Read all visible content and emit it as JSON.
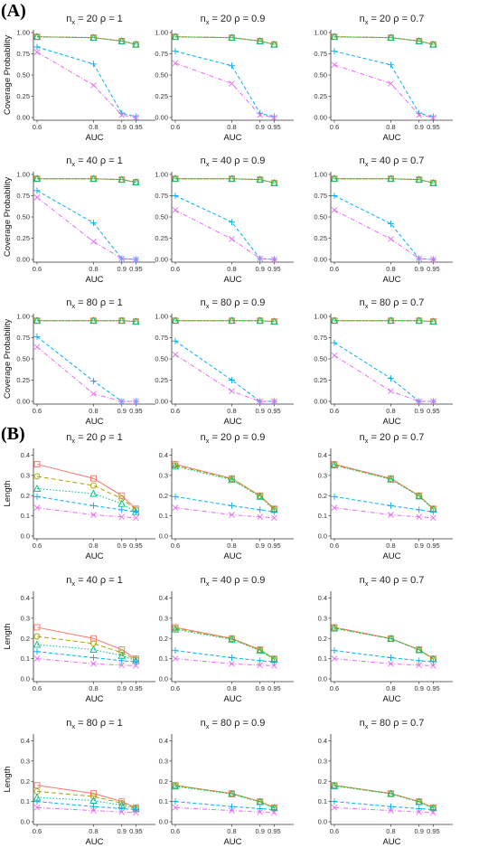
{
  "section_labels": {
    "a": "(A)",
    "b": "(B)"
  },
  "colors": {
    "s1": "#F8766D",
    "s2": "#A3A500",
    "s3": "#00BF7D",
    "s4": "#00B0F6",
    "s5": "#E76BF3"
  },
  "chart_data": [
    {
      "type": "line",
      "section": "(A)",
      "title_parts": [
        "n",
        "x",
        " = 20 ρ = 1"
      ],
      "xlabel": "AUC",
      "ylabel": "Coverage Probability",
      "categories": [
        "0.6",
        "0.8",
        "0.9",
        "0.95"
      ],
      "yticks": [
        "0.00",
        "0.25",
        "0.50",
        "0.75",
        "1.00"
      ],
      "ylim": [
        0,
        1
      ],
      "series": [
        {
          "values": [
            0.95,
            0.94,
            0.9,
            0.86
          ]
        },
        {
          "values": [
            0.95,
            0.94,
            0.9,
            0.86
          ]
        },
        {
          "values": [
            0.95,
            0.94,
            0.9,
            0.86
          ]
        },
        {
          "values": [
            0.83,
            0.63,
            0.05,
            0.01
          ]
        },
        {
          "values": [
            0.77,
            0.38,
            0.03,
            0.0
          ]
        }
      ]
    },
    {
      "type": "line",
      "section": "(A)",
      "title_parts": [
        "n",
        "x",
        " = 20 ρ = 0.9"
      ],
      "xlabel": "AUC",
      "ylabel": "",
      "categories": [
        "0.6",
        "0.8",
        "0.9",
        "0.95"
      ],
      "yticks": [
        "0.00",
        "0.25",
        "0.50",
        "0.75",
        "1.00"
      ],
      "ylim": [
        0,
        1
      ],
      "series": [
        {
          "values": [
            0.95,
            0.94,
            0.9,
            0.86
          ]
        },
        {
          "values": [
            0.95,
            0.94,
            0.9,
            0.86
          ]
        },
        {
          "values": [
            0.95,
            0.94,
            0.9,
            0.86
          ]
        },
        {
          "values": [
            0.78,
            0.61,
            0.05,
            0.01
          ]
        },
        {
          "values": [
            0.64,
            0.4,
            0.03,
            0.0
          ]
        }
      ]
    },
    {
      "type": "line",
      "section": "(A)",
      "title_parts": [
        "n",
        "x",
        " = 20 ρ = 0.7"
      ],
      "xlabel": "AUC",
      "ylabel": "",
      "categories": [
        "0.6",
        "0.8",
        "0.9",
        "0.95"
      ],
      "yticks": [
        "0.00",
        "0.25",
        "0.50",
        "0.75",
        "1.00"
      ],
      "ylim": [
        0,
        1
      ],
      "series": [
        {
          "values": [
            0.95,
            0.94,
            0.9,
            0.86
          ]
        },
        {
          "values": [
            0.95,
            0.94,
            0.9,
            0.86
          ]
        },
        {
          "values": [
            0.95,
            0.94,
            0.9,
            0.86
          ]
        },
        {
          "values": [
            0.78,
            0.62,
            0.05,
            0.01
          ]
        },
        {
          "values": [
            0.62,
            0.4,
            0.03,
            0.0
          ]
        }
      ]
    },
    {
      "type": "line",
      "section": "(A)",
      "title_parts": [
        "n",
        "x",
        " = 40 ρ = 1"
      ],
      "xlabel": "AUC",
      "ylabel": "Coverage Probability",
      "categories": [
        "0.6",
        "0.8",
        "0.9",
        "0.95"
      ],
      "yticks": [
        "0.00",
        "0.25",
        "0.50",
        "0.75",
        "1.00"
      ],
      "ylim": [
        0,
        1
      ],
      "series": [
        {
          "values": [
            0.95,
            0.95,
            0.94,
            0.91
          ]
        },
        {
          "values": [
            0.95,
            0.95,
            0.94,
            0.91
          ]
        },
        {
          "values": [
            0.95,
            0.95,
            0.94,
            0.91
          ]
        },
        {
          "values": [
            0.81,
            0.43,
            0.01,
            0.0
          ]
        },
        {
          "values": [
            0.73,
            0.21,
            0.01,
            0.0
          ]
        }
      ]
    },
    {
      "type": "line",
      "section": "(A)",
      "title_parts": [
        "n",
        "x",
        " = 40 ρ = 0.9"
      ],
      "xlabel": "AUC",
      "ylabel": "",
      "categories": [
        "0.6",
        "0.8",
        "0.9",
        "0.95"
      ],
      "yticks": [
        "0.00",
        "0.25",
        "0.50",
        "0.75",
        "1.00"
      ],
      "ylim": [
        0,
        1
      ],
      "series": [
        {
          "values": [
            0.95,
            0.95,
            0.94,
            0.9
          ]
        },
        {
          "values": [
            0.95,
            0.95,
            0.94,
            0.9
          ]
        },
        {
          "values": [
            0.95,
            0.95,
            0.94,
            0.9
          ]
        },
        {
          "values": [
            0.75,
            0.44,
            0.01,
            0.0
          ]
        },
        {
          "values": [
            0.58,
            0.24,
            0.01,
            0.0
          ]
        }
      ]
    },
    {
      "type": "line",
      "section": "(A)",
      "title_parts": [
        "n",
        "x",
        " = 40 ρ = 0.7"
      ],
      "xlabel": "AUC",
      "ylabel": "",
      "categories": [
        "0.6",
        "0.8",
        "0.9",
        "0.95"
      ],
      "yticks": [
        "0.00",
        "0.25",
        "0.50",
        "0.75",
        "1.00"
      ],
      "ylim": [
        0,
        1
      ],
      "series": [
        {
          "values": [
            0.95,
            0.95,
            0.94,
            0.9
          ]
        },
        {
          "values": [
            0.95,
            0.95,
            0.94,
            0.9
          ]
        },
        {
          "values": [
            0.95,
            0.95,
            0.94,
            0.9
          ]
        },
        {
          "values": [
            0.75,
            0.42,
            0.01,
            0.0
          ]
        },
        {
          "values": [
            0.58,
            0.24,
            0.01,
            0.0
          ]
        }
      ]
    },
    {
      "type": "line",
      "section": "(A)",
      "title_parts": [
        "n",
        "x",
        " = 80 ρ = 1"
      ],
      "xlabel": "AUC",
      "ylabel": "Coverage Probability",
      "categories": [
        "0.6",
        "0.8",
        "0.9",
        "0.95"
      ],
      "yticks": [
        "0.00",
        "0.25",
        "0.50",
        "0.75",
        "1.00"
      ],
      "ylim": [
        0,
        1
      ],
      "series": [
        {
          "values": [
            0.95,
            0.95,
            0.95,
            0.94
          ]
        },
        {
          "values": [
            0.95,
            0.95,
            0.95,
            0.94
          ]
        },
        {
          "values": [
            0.95,
            0.95,
            0.95,
            0.94
          ]
        },
        {
          "values": [
            0.76,
            0.24,
            0.0,
            0.0
          ]
        },
        {
          "values": [
            0.64,
            0.09,
            0.0,
            0.0
          ]
        }
      ]
    },
    {
      "type": "line",
      "section": "(A)",
      "title_parts": [
        "n",
        "x",
        " = 80 ρ = 0.9"
      ],
      "xlabel": "AUC",
      "ylabel": "",
      "categories": [
        "0.6",
        "0.8",
        "0.9",
        "0.95"
      ],
      "yticks": [
        "0.00",
        "0.25",
        "0.50",
        "0.75",
        "1.00"
      ],
      "ylim": [
        0,
        1
      ],
      "series": [
        {
          "values": [
            0.95,
            0.95,
            0.95,
            0.94
          ]
        },
        {
          "values": [
            0.95,
            0.95,
            0.95,
            0.94
          ]
        },
        {
          "values": [
            0.95,
            0.95,
            0.95,
            0.94
          ]
        },
        {
          "values": [
            0.71,
            0.25,
            0.0,
            0.0
          ]
        },
        {
          "values": [
            0.55,
            0.12,
            0.0,
            0.0
          ]
        }
      ]
    },
    {
      "type": "line",
      "section": "(A)",
      "title_parts": [
        "n",
        "x",
        " = 80 ρ = 0.7"
      ],
      "xlabel": "AUC",
      "ylabel": "",
      "categories": [
        "0.6",
        "0.8",
        "0.9",
        "0.95"
      ],
      "yticks": [
        "0.00",
        "0.25",
        "0.50",
        "0.75",
        "1.00"
      ],
      "ylim": [
        0,
        1
      ],
      "series": [
        {
          "values": [
            0.95,
            0.95,
            0.95,
            0.94
          ]
        },
        {
          "values": [
            0.95,
            0.95,
            0.95,
            0.94
          ]
        },
        {
          "values": [
            0.95,
            0.95,
            0.95,
            0.94
          ]
        },
        {
          "values": [
            0.69,
            0.27,
            0.0,
            0.0
          ]
        },
        {
          "values": [
            0.54,
            0.12,
            0.0,
            0.0
          ]
        }
      ]
    },
    {
      "type": "line",
      "section": "(B)",
      "title_parts": [
        "n",
        "x",
        " = 20 ρ = 1"
      ],
      "xlabel": "AUC",
      "ylabel": "Length",
      "categories": [
        "0.6",
        "0.8",
        "0.9",
        "0.95"
      ],
      "yticks": [
        "0.0",
        "0.1",
        "0.2",
        "0.3",
        "0.4"
      ],
      "ylim": [
        0,
        0.42
      ],
      "series": [
        {
          "values": [
            0.355,
            0.285,
            0.2,
            0.135
          ]
        },
        {
          "values": [
            0.295,
            0.25,
            0.185,
            0.13
          ]
        },
        {
          "values": [
            0.235,
            0.21,
            0.16,
            0.12
          ]
        },
        {
          "values": [
            0.195,
            0.15,
            0.13,
            0.12
          ]
        },
        {
          "values": [
            0.14,
            0.105,
            0.095,
            0.09
          ]
        }
      ]
    },
    {
      "type": "line",
      "section": "(B)",
      "title_parts": [
        "n",
        "x",
        " = 20 ρ = 0.9"
      ],
      "xlabel": "AUC",
      "ylabel": "",
      "categories": [
        "0.6",
        "0.8",
        "0.9",
        "0.95"
      ],
      "yticks": [
        "0.0",
        "0.1",
        "0.2",
        "0.3",
        "0.4"
      ],
      "ylim": [
        0,
        0.42
      ],
      "series": [
        {
          "values": [
            0.355,
            0.285,
            0.2,
            0.135
          ]
        },
        {
          "values": [
            0.35,
            0.282,
            0.198,
            0.133
          ]
        },
        {
          "values": [
            0.345,
            0.278,
            0.195,
            0.13
          ]
        },
        {
          "values": [
            0.195,
            0.15,
            0.13,
            0.12
          ]
        },
        {
          "values": [
            0.14,
            0.105,
            0.095,
            0.09
          ]
        }
      ]
    },
    {
      "type": "line",
      "section": "(B)",
      "title_parts": [
        "n",
        "x",
        " = 20 ρ = 0.7"
      ],
      "xlabel": "AUC",
      "ylabel": "",
      "categories": [
        "0.6",
        "0.8",
        "0.9",
        "0.95"
      ],
      "yticks": [
        "0.0",
        "0.1",
        "0.2",
        "0.3",
        "0.4"
      ],
      "ylim": [
        0,
        0.42
      ],
      "series": [
        {
          "values": [
            0.355,
            0.285,
            0.2,
            0.135
          ]
        },
        {
          "values": [
            0.352,
            0.283,
            0.199,
            0.134
          ]
        },
        {
          "values": [
            0.35,
            0.28,
            0.197,
            0.132
          ]
        },
        {
          "values": [
            0.195,
            0.15,
            0.13,
            0.12
          ]
        },
        {
          "values": [
            0.14,
            0.105,
            0.095,
            0.09
          ]
        }
      ]
    },
    {
      "type": "line",
      "section": "(B)",
      "title_parts": [
        "n",
        "x",
        " = 40 ρ = 1"
      ],
      "xlabel": "AUC",
      "ylabel": "Length",
      "categories": [
        "0.6",
        "0.8",
        "0.9",
        "0.95"
      ],
      "yticks": [
        "0.0",
        "0.1",
        "0.2",
        "0.3",
        "0.4"
      ],
      "ylim": [
        0,
        0.42
      ],
      "series": [
        {
          "values": [
            0.255,
            0.2,
            0.145,
            0.1
          ]
        },
        {
          "values": [
            0.21,
            0.175,
            0.13,
            0.095
          ]
        },
        {
          "values": [
            0.17,
            0.145,
            0.115,
            0.09
          ]
        },
        {
          "values": [
            0.135,
            0.105,
            0.09,
            0.085
          ]
        },
        {
          "values": [
            0.1,
            0.075,
            0.068,
            0.065
          ]
        }
      ]
    },
    {
      "type": "line",
      "section": "(B)",
      "title_parts": [
        "n",
        "x",
        " = 40 ρ = 0.9"
      ],
      "xlabel": "AUC",
      "ylabel": "",
      "categories": [
        "0.6",
        "0.8",
        "0.9",
        "0.95"
      ],
      "yticks": [
        "0.0",
        "0.1",
        "0.2",
        "0.3",
        "0.4"
      ],
      "ylim": [
        0,
        0.42
      ],
      "series": [
        {
          "values": [
            0.255,
            0.2,
            0.145,
            0.1
          ]
        },
        {
          "values": [
            0.25,
            0.198,
            0.143,
            0.098
          ]
        },
        {
          "values": [
            0.245,
            0.195,
            0.14,
            0.096
          ]
        },
        {
          "values": [
            0.14,
            0.105,
            0.09,
            0.085
          ]
        },
        {
          "values": [
            0.1,
            0.075,
            0.068,
            0.065
          ]
        }
      ]
    },
    {
      "type": "line",
      "section": "(B)",
      "title_parts": [
        "n",
        "x",
        " = 40 ρ = 0.7"
      ],
      "xlabel": "AUC",
      "ylabel": "",
      "categories": [
        "0.6",
        "0.8",
        "0.9",
        "0.95"
      ],
      "yticks": [
        "0.0",
        "0.1",
        "0.2",
        "0.3",
        "0.4"
      ],
      "ylim": [
        0,
        0.42
      ],
      "series": [
        {
          "values": [
            0.255,
            0.2,
            0.145,
            0.1
          ]
        },
        {
          "values": [
            0.252,
            0.199,
            0.144,
            0.099
          ]
        },
        {
          "values": [
            0.25,
            0.198,
            0.143,
            0.098
          ]
        },
        {
          "values": [
            0.14,
            0.105,
            0.09,
            0.085
          ]
        },
        {
          "values": [
            0.1,
            0.075,
            0.068,
            0.065
          ]
        }
      ]
    },
    {
      "type": "line",
      "section": "(B)",
      "title_parts": [
        "n",
        "x",
        " = 80 ρ = 1"
      ],
      "xlabel": "AUC",
      "ylabel": "Length",
      "categories": [
        "0.6",
        "0.8",
        "0.9",
        "0.95"
      ],
      "yticks": [
        "0.0",
        "0.1",
        "0.2",
        "0.3",
        "0.4"
      ],
      "ylim": [
        0,
        0.42
      ],
      "series": [
        {
          "values": [
            0.18,
            0.14,
            0.1,
            0.07
          ]
        },
        {
          "values": [
            0.15,
            0.125,
            0.092,
            0.067
          ]
        },
        {
          "values": [
            0.12,
            0.105,
            0.082,
            0.063
          ]
        },
        {
          "values": [
            0.1,
            0.075,
            0.065,
            0.06
          ]
        },
        {
          "values": [
            0.07,
            0.055,
            0.048,
            0.045
          ]
        }
      ]
    },
    {
      "type": "line",
      "section": "(B)",
      "title_parts": [
        "n",
        "x",
        " = 80 ρ = 0.9"
      ],
      "xlabel": "AUC",
      "ylabel": "",
      "categories": [
        "0.6",
        "0.8",
        "0.9",
        "0.95"
      ],
      "yticks": [
        "0.0",
        "0.1",
        "0.2",
        "0.3",
        "0.4"
      ],
      "ylim": [
        0,
        0.42
      ],
      "series": [
        {
          "values": [
            0.18,
            0.14,
            0.1,
            0.07
          ]
        },
        {
          "values": [
            0.178,
            0.139,
            0.099,
            0.069
          ]
        },
        {
          "values": [
            0.175,
            0.137,
            0.098,
            0.068
          ]
        },
        {
          "values": [
            0.1,
            0.075,
            0.065,
            0.06
          ]
        },
        {
          "values": [
            0.07,
            0.055,
            0.048,
            0.045
          ]
        }
      ]
    },
    {
      "type": "line",
      "section": "(B)",
      "title_parts": [
        "n",
        "x",
        " = 80 ρ = 0.7"
      ],
      "xlabel": "AUC",
      "ylabel": "",
      "categories": [
        "0.6",
        "0.8",
        "0.9",
        "0.95"
      ],
      "yticks": [
        "0.0",
        "0.1",
        "0.2",
        "0.3",
        "0.4"
      ],
      "ylim": [
        0,
        0.42
      ],
      "series": [
        {
          "values": [
            0.18,
            0.14,
            0.1,
            0.07
          ]
        },
        {
          "values": [
            0.179,
            0.139,
            0.099,
            0.069
          ]
        },
        {
          "values": [
            0.177,
            0.138,
            0.098,
            0.068
          ]
        },
        {
          "values": [
            0.1,
            0.075,
            0.065,
            0.06
          ]
        },
        {
          "values": [
            0.07,
            0.055,
            0.048,
            0.045
          ]
        }
      ]
    }
  ]
}
